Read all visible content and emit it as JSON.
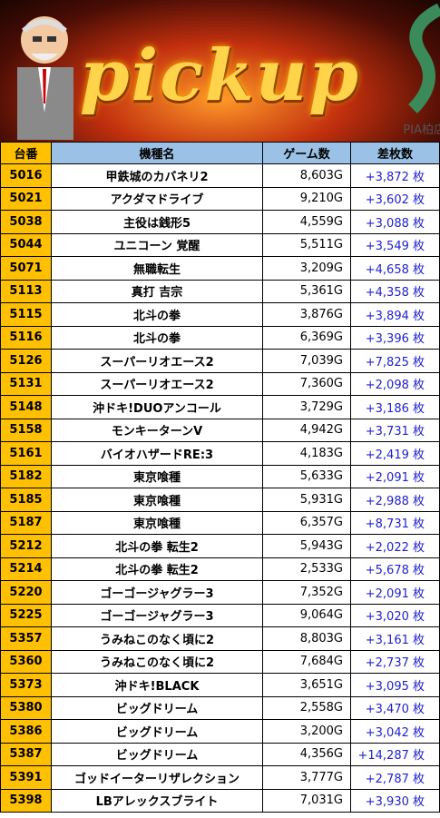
{
  "banner": {
    "title": "pickup",
    "store": "PIA柏店"
  },
  "table": {
    "headers": [
      "台番",
      "機種名",
      "ゲーム数",
      "差枚数"
    ],
    "rows": [
      [
        "5016",
        "甲鉄城のカバネリ2",
        "8,603G",
        "+3,872 枚"
      ],
      [
        "5021",
        "アクダマドライブ",
        "9,210G",
        "+3,602 枚"
      ],
      [
        "5038",
        "主役は銭形5",
        "4,559G",
        "+3,088 枚"
      ],
      [
        "5044",
        "ユニコーン 覚醒",
        "5,511G",
        "+3,549 枚"
      ],
      [
        "5071",
        "無職転生",
        "3,209G",
        "+4,658 枚"
      ],
      [
        "5113",
        "真打 吉宗",
        "5,361G",
        "+4,358 枚"
      ],
      [
        "5115",
        "北斗の拳",
        "3,876G",
        "+3,894 枚"
      ],
      [
        "5116",
        "北斗の拳",
        "6,369G",
        "+3,396 枚"
      ],
      [
        "5126",
        "スーパーリオエース2",
        "7,039G",
        "+7,825 枚"
      ],
      [
        "5131",
        "スーパーリオエース2",
        "7,360G",
        "+2,098 枚"
      ],
      [
        "5148",
        "沖ドキ!DUOアンコール",
        "3,729G",
        "+3,186 枚"
      ],
      [
        "5158",
        "モンキーターンV",
        "4,942G",
        "+3,731 枚"
      ],
      [
        "5161",
        "バイオハザードRE:3",
        "4,183G",
        "+2,419 枚"
      ],
      [
        "5182",
        "東京喰種",
        "5,633G",
        "+2,091 枚"
      ],
      [
        "5185",
        "東京喰種",
        "5,931G",
        "+2,988 枚"
      ],
      [
        "5187",
        "東京喰種",
        "6,357G",
        "+8,731 枚"
      ],
      [
        "5212",
        "北斗の拳 転生2",
        "5,943G",
        "+2,022 枚"
      ],
      [
        "5214",
        "北斗の拳 転生2",
        "2,533G",
        "+5,678 枚"
      ],
      [
        "5220",
        "ゴーゴージャグラー3",
        "7,352G",
        "+2,091 枚"
      ],
      [
        "5225",
        "ゴーゴージャグラー3",
        "9,064G",
        "+3,020 枚"
      ],
      [
        "5357",
        "うみねこのなく頃に2",
        "8,803G",
        "+3,161 枚"
      ],
      [
        "5360",
        "うみねこのなく頃に2",
        "7,684G",
        "+2,737 枚"
      ],
      [
        "5373",
        "沖ドキ!BLACK",
        "3,651G",
        "+3,095 枚"
      ],
      [
        "5380",
        "ビッグドリーム",
        "2,558G",
        "+3,470 枚"
      ],
      [
        "5386",
        "ビッグドリーム",
        "3,200G",
        "+3,042 枚"
      ],
      [
        "5387",
        "ビッグドリーム",
        "4,356G",
        "+14,287 枚"
      ],
      [
        "5391",
        "ゴッドイーターリザレクション",
        "3,777G",
        "+2,787 枚"
      ],
      [
        "5398",
        "LBアレックスブライト",
        "7,031G",
        "+3,930 枚"
      ]
    ]
  }
}
